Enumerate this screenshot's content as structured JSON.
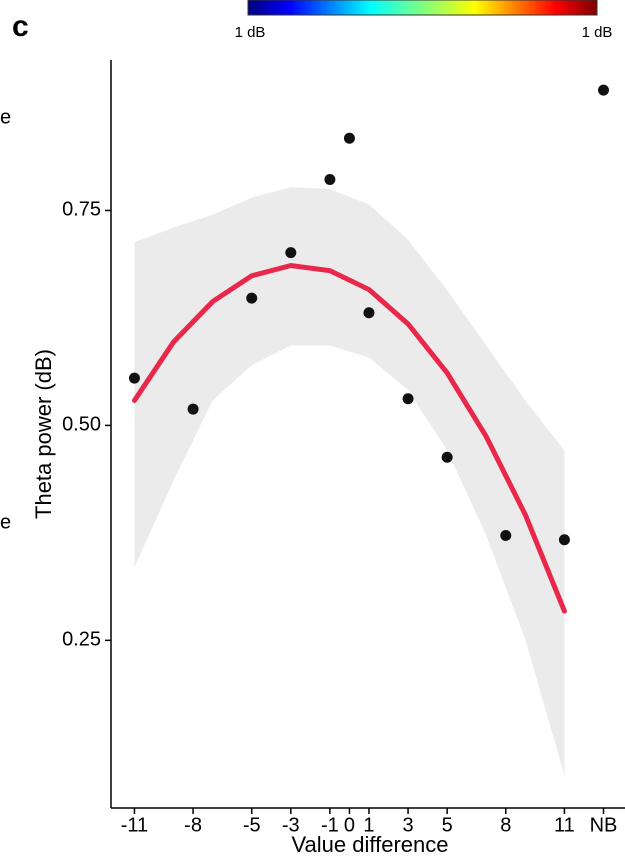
{
  "panel_label": "c",
  "colorbar_labels": [
    "1 dB",
    "1 dB"
  ],
  "left_fragments": [
    "e",
    "e"
  ],
  "chart_data": {
    "type": "scatter",
    "x_label": "Value difference",
    "y_label": "Theta power (dB)",
    "xlim": [
      -12.2,
      14.1
    ],
    "ylim": [
      0.055,
      0.925
    ],
    "xticks": [
      -11,
      -8,
      -5,
      -3,
      -1,
      0,
      1,
      3,
      5,
      8,
      11,
      {
        "value": 13,
        "label": "NB"
      }
    ],
    "yticks": [
      0.25,
      {
        "value": 0.5,
        "label": "0.50"
      },
      0.75
    ],
    "points": {
      "color": "#111111",
      "x": [
        -11,
        -8,
        -5,
        -3,
        -1,
        0,
        1,
        3,
        5,
        8,
        11,
        13
      ],
      "y": [
        0.555,
        0.519,
        0.648,
        0.701,
        0.786,
        0.834,
        0.631,
        0.531,
        0.463,
        0.372,
        0.367,
        0.89
      ]
    },
    "fit": {
      "color": "#e8274b",
      "x": [
        -11,
        -9,
        -7,
        -5,
        -3,
        -1,
        1,
        3,
        5,
        7,
        9,
        11
      ],
      "y": [
        0.529,
        0.597,
        0.644,
        0.674,
        0.686,
        0.68,
        0.658,
        0.618,
        0.561,
        0.487,
        0.396,
        0.284
      ]
    },
    "band": {
      "color": "#ebebeb",
      "x": [
        -11,
        -9,
        -7,
        -5,
        -3,
        -1,
        1,
        3,
        5,
        7,
        9,
        11
      ],
      "upper": [
        0.713,
        0.73,
        0.745,
        0.765,
        0.777,
        0.775,
        0.757,
        0.716,
        0.657,
        0.593,
        0.529,
        0.471
      ],
      "lower": [
        0.335,
        0.436,
        0.529,
        0.57,
        0.593,
        0.593,
        0.579,
        0.541,
        0.471,
        0.372,
        0.251,
        0.093
      ]
    }
  }
}
